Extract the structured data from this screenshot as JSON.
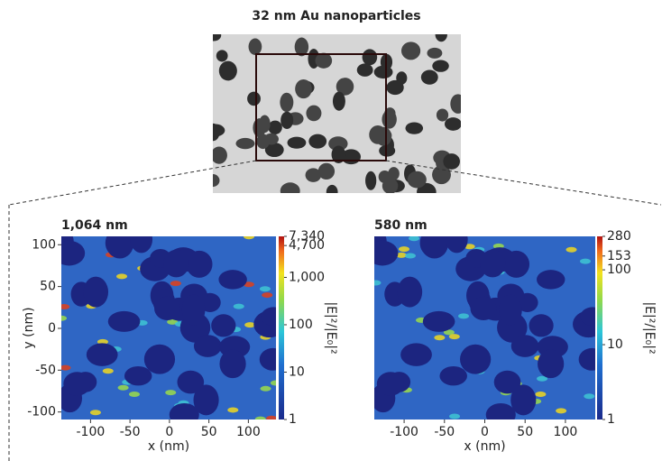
{
  "title": "32 nm Au nanoparticles",
  "chart_data": [
    {
      "type": "heatmap",
      "title": "1,064 nm",
      "x_label": "x (nm)",
      "y_label": "y (nm)",
      "xlim": [
        -137,
        135
      ],
      "ylim": [
        -109,
        110
      ],
      "xticks": [
        -100,
        -50,
        0,
        50,
        100
      ],
      "yticks": [
        -100,
        -50,
        0,
        50,
        100
      ],
      "colorbar": {
        "label": "|E|²/|E₀|²",
        "scale": "log",
        "lim": [
          1,
          7340
        ],
        "ticks": [
          1,
          10,
          100,
          {
            "value": 1000,
            "label": "1,000"
          },
          {
            "value": 4700,
            "label": "4,700"
          },
          {
            "value": 7340,
            "label": "7,340"
          }
        ]
      }
    },
    {
      "type": "heatmap",
      "title": "580 nm",
      "x_label": "x (nm)",
      "y_label": null,
      "xlim": [
        -137,
        137
      ],
      "ylim": [
        -109,
        110
      ],
      "xticks": [
        -100,
        -50,
        0,
        50,
        100
      ],
      "yticks": null,
      "colorbar": {
        "label": "|E|²/|E₀|²",
        "scale": "log",
        "lim": [
          1,
          280
        ],
        "ticks": [
          1,
          10,
          100,
          153,
          280
        ]
      }
    }
  ]
}
